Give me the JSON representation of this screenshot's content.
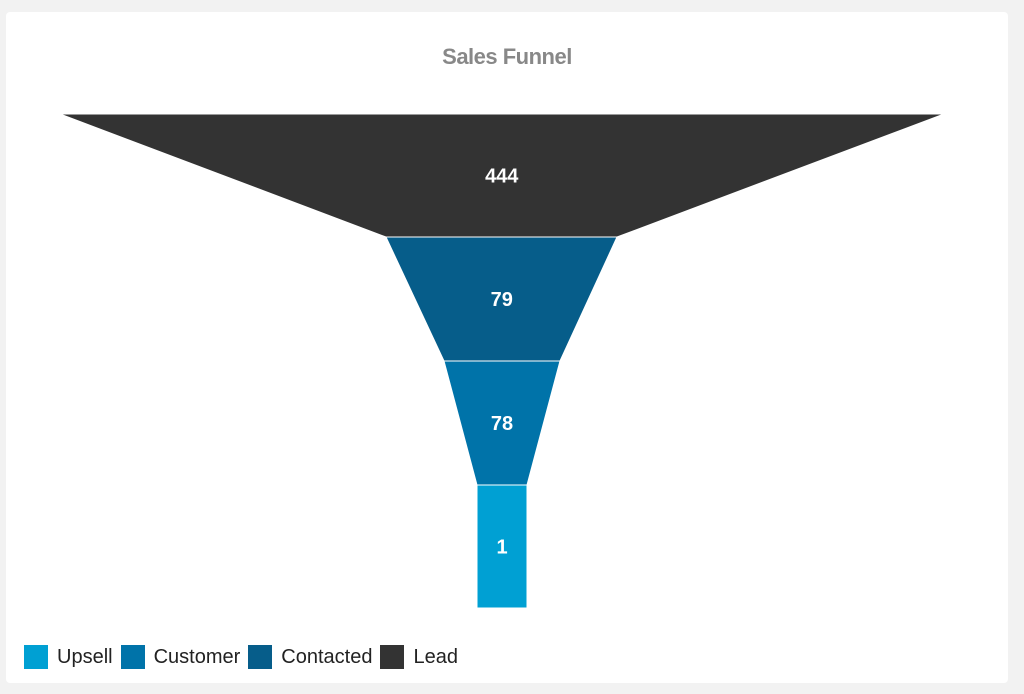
{
  "chart_data": {
    "type": "funnel",
    "title": "Sales Funnel",
    "stages": [
      {
        "name": "Lead",
        "value": 444,
        "color": "#333333"
      },
      {
        "name": "Contacted",
        "value": 79,
        "color": "#065d8a"
      },
      {
        "name": "Customer",
        "value": 78,
        "color": "#0073a9"
      },
      {
        "name": "Upsell",
        "value": 1,
        "color": "#00a0d3"
      }
    ],
    "legend": [
      "Upsell",
      "Customer",
      "Contacted",
      "Lead"
    ],
    "legend_placement": "bottom-left"
  }
}
